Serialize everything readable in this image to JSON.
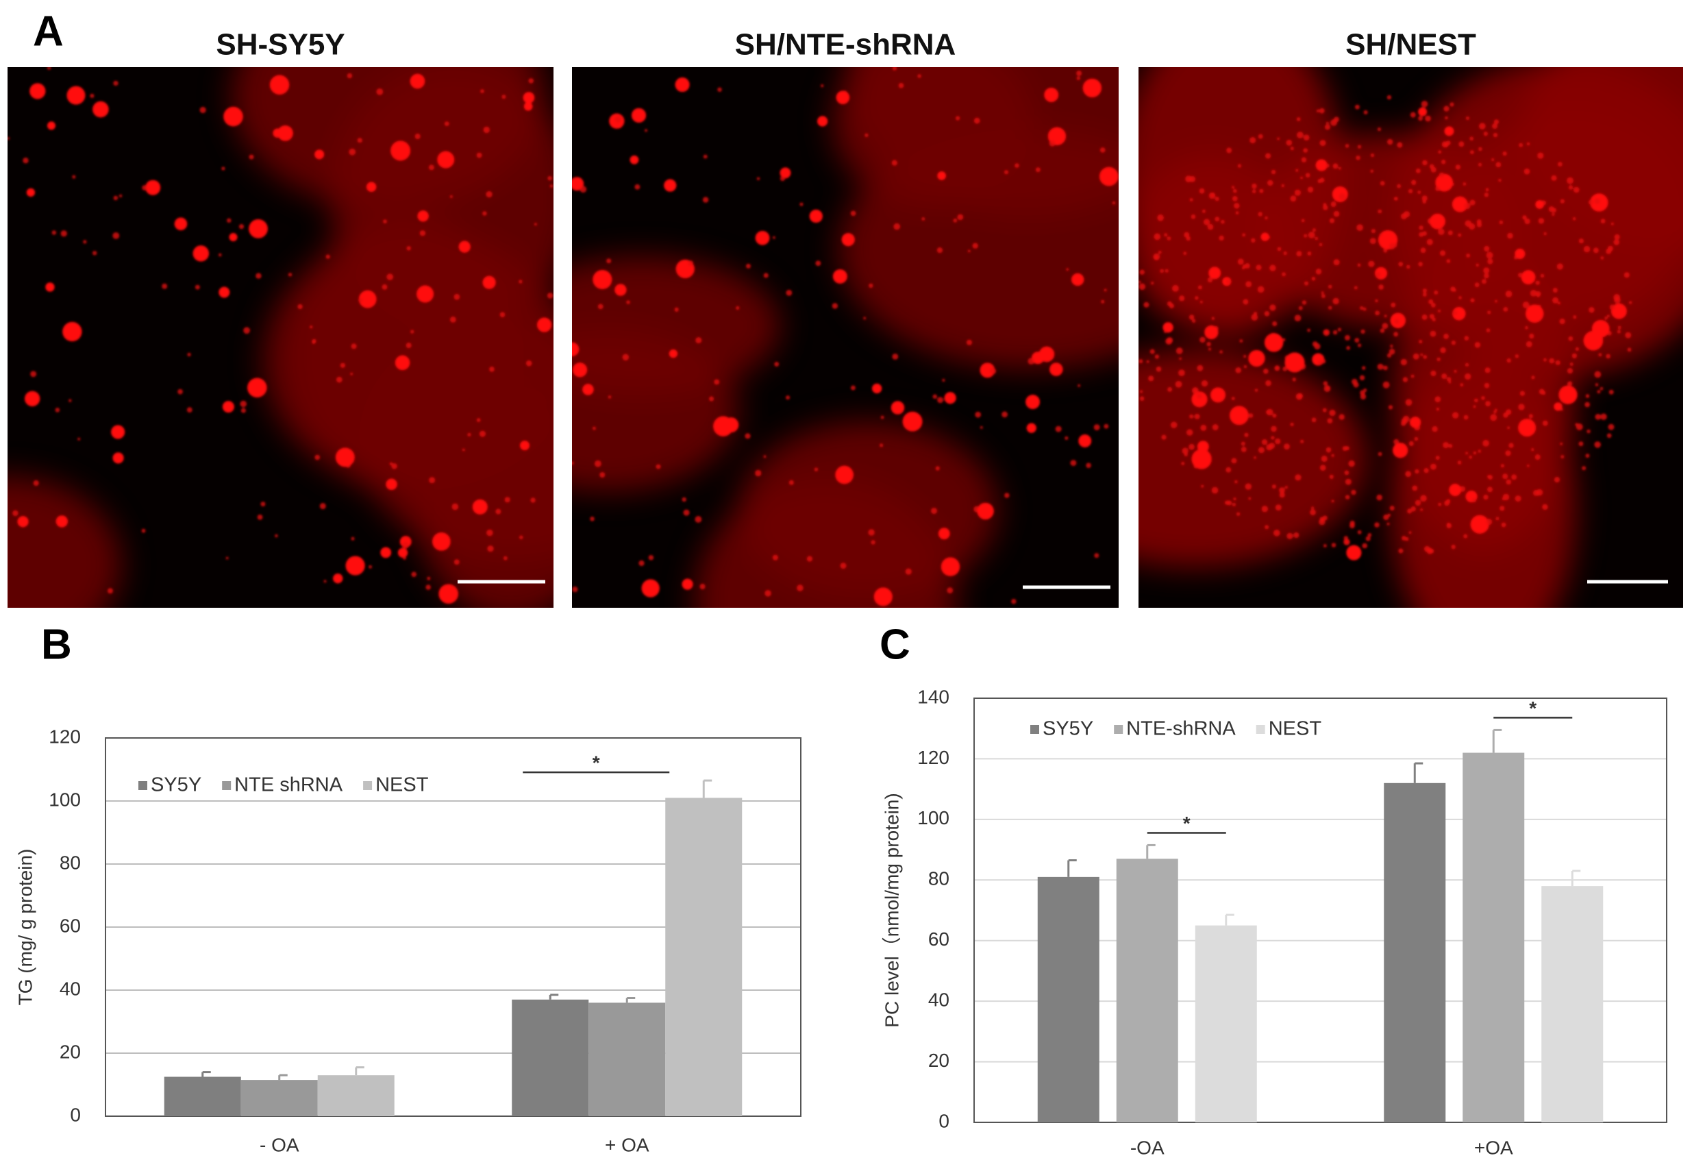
{
  "panel_a": {
    "label": "A",
    "titles": [
      "SH-SY5Y",
      "SH/NTE-shRNA",
      "SH/NEST"
    ]
  },
  "chart_data": [
    {
      "type": "bar",
      "panel_label": "B",
      "ylabel": "TG (mg/ g protein)",
      "categories": [
        "- OA",
        "+ OA"
      ],
      "series": [
        {
          "name": "SY5Y",
          "color": "#7f7f7f",
          "values": [
            12.5,
            37
          ],
          "errors": [
            1.5,
            1.5
          ]
        },
        {
          "name": "NTE shRNA",
          "color": "#999999",
          "values": [
            11.5,
            36
          ],
          "errors": [
            1.5,
            1.5
          ]
        },
        {
          "name": "NEST",
          "color": "#c0c0c0",
          "values": [
            13,
            101
          ],
          "errors": [
            2.5,
            5.5
          ]
        }
      ],
      "ylim": [
        0,
        120
      ],
      "yticks": [
        0,
        20,
        40,
        60,
        80,
        100,
        120
      ],
      "grid": true,
      "legend": "top-left",
      "annotations": [
        "*"
      ]
    },
    {
      "type": "bar",
      "panel_label": "C",
      "ylabel": "PC level（nmol/mg protein)",
      "categories": [
        "-OA",
        "+OA"
      ],
      "series": [
        {
          "name": "SY5Y",
          "color": "#808080",
          "values": [
            81,
            112
          ],
          "errors": [
            5.5,
            6.5
          ]
        },
        {
          "name": "NTE-shRNA",
          "color": "#adadad",
          "values": [
            87,
            122
          ],
          "errors": [
            4.5,
            7.5
          ]
        },
        {
          "name": "NEST",
          "color": "#dcdcdc",
          "values": [
            65,
            78
          ],
          "errors": [
            3.5,
            5
          ]
        }
      ],
      "ylim": [
        0,
        140
      ],
      "yticks": [
        0,
        20,
        40,
        60,
        80,
        100,
        120,
        140
      ],
      "grid": true,
      "legend": "top-left",
      "annotations": [
        "*",
        "*"
      ]
    }
  ]
}
